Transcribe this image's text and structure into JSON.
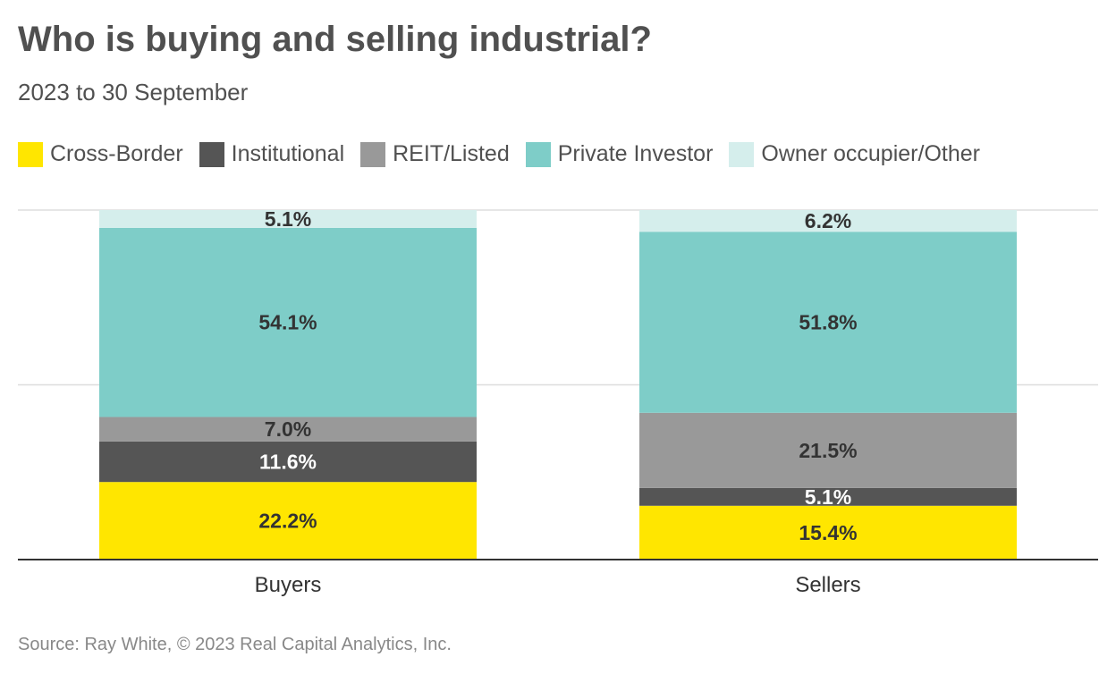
{
  "title": "Who is buying and selling industrial?",
  "subtitle": "2023 to 30 September",
  "source": "Source: Ray White, © 2023 Real Capital Analytics, Inc.",
  "chart_data": {
    "type": "bar",
    "stacked": true,
    "categories": [
      "Buyers",
      "Sellers"
    ],
    "ylim": [
      0,
      100
    ],
    "grid": true,
    "legend_position": "top",
    "series": [
      {
        "name": "Cross-Border",
        "color": "#FFE600",
        "values": [
          22.2,
          15.4
        ],
        "labels": [
          "22.2%",
          "15.4%"
        ]
      },
      {
        "name": "Institutional",
        "color": "#555555",
        "values": [
          11.6,
          5.1
        ],
        "labels": [
          "11.6%",
          "5.1%"
        ]
      },
      {
        "name": "REIT/Listed",
        "color": "#999999",
        "values": [
          7.0,
          21.5
        ],
        "labels": [
          "7.0%",
          "21.5%"
        ]
      },
      {
        "name": "Private Investor",
        "color": "#7ECDC8",
        "values": [
          54.1,
          51.8
        ],
        "labels": [
          "54.1%",
          "51.8%"
        ]
      },
      {
        "name": "Owner occupier/Other",
        "color": "#D5EEEC",
        "values": [
          5.1,
          6.2
        ],
        "labels": [
          "5.1%",
          "6.2%"
        ]
      }
    ]
  }
}
